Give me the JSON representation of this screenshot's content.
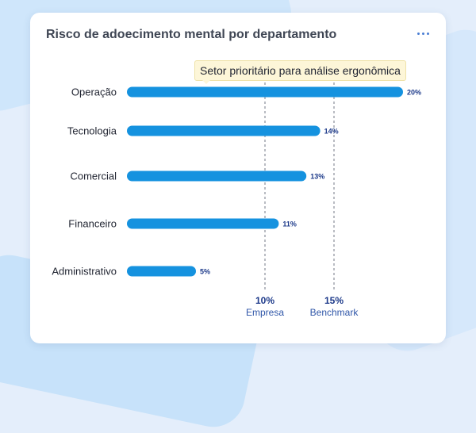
{
  "card": {
    "title": "Risco de adoecimento mental por departamento",
    "menu_icon": "more-horizontal-icon"
  },
  "callout": {
    "text": "Setor prioritário para análise ergonômica"
  },
  "colors": {
    "bar": "#1592df",
    "value_label": "#1d3a8a",
    "reference_line": "#707784",
    "callout_background": "#fdf6d8"
  },
  "chart_data": {
    "type": "bar",
    "orientation": "horizontal",
    "title": "Risco de adoecimento mental por departamento",
    "categories": [
      "Operação",
      "Tecnologia",
      "Comercial",
      "Financeiro",
      "Administrativo"
    ],
    "values": [
      20,
      14,
      13,
      11,
      5
    ],
    "value_labels": [
      "20%",
      "14%",
      "13%",
      "11%",
      "5%"
    ],
    "unit": "%",
    "xlim": [
      0,
      20
    ],
    "reference_lines": [
      {
        "value": 10,
        "value_label": "10%",
        "name": "Empresa"
      },
      {
        "value": 15,
        "value_label": "15%",
        "name": "Benchmark"
      }
    ],
    "annotation": {
      "text": "Setor prioritário para análise ergonômica",
      "category": "Operação"
    },
    "grid": false
  }
}
